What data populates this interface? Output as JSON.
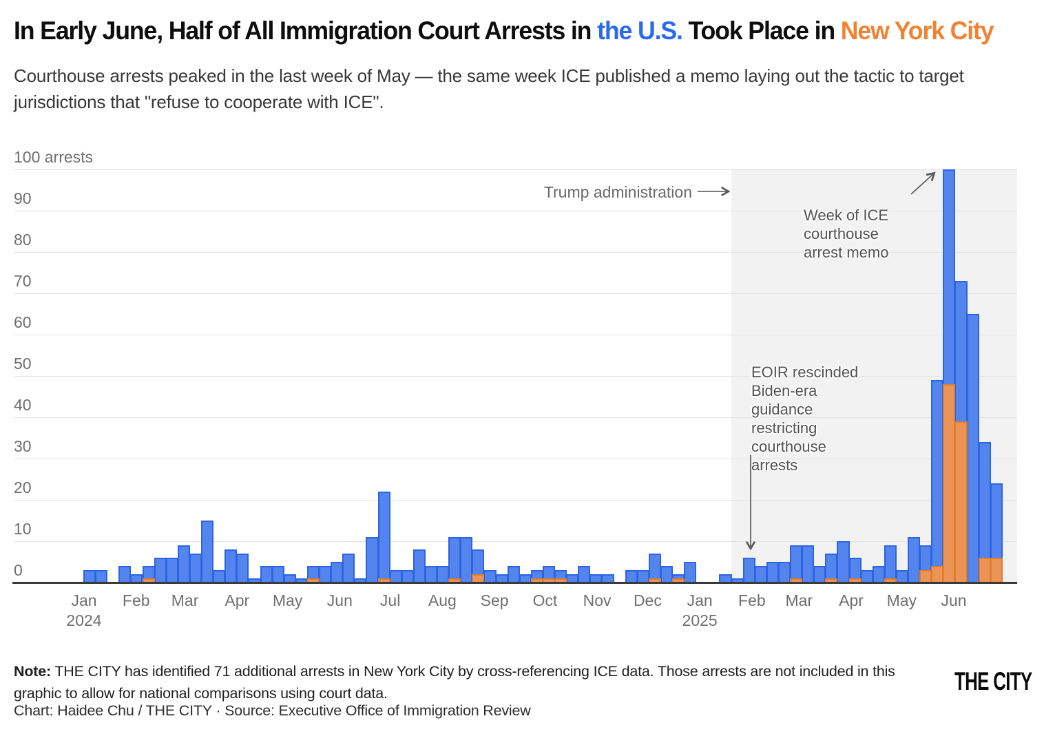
{
  "title": {
    "pre": "In Early June, Half of All Immigration Court Arrests in ",
    "us_highlight": "the U.S.",
    "mid": " Took Place in ",
    "nyc_highlight": "New York City"
  },
  "subtitle": "Courthouse arrests peaked in the last week of May — the same week ICE published a memo laying out the tactic to target jurisdictions that \"refuse to cooperate with ICE\".",
  "y_axis": {
    "top_label": "100 arrests",
    "ticks": [
      90,
      80,
      70,
      60,
      50,
      40,
      30,
      20,
      10,
      0
    ]
  },
  "x_axis": {
    "months": [
      {
        "label": "Jan",
        "year": "2024",
        "day_offset": 0
      },
      {
        "label": "Feb",
        "day_offset": 31
      },
      {
        "label": "Mar",
        "day_offset": 60
      },
      {
        "label": "Apr",
        "day_offset": 91
      },
      {
        "label": "May",
        "day_offset": 121
      },
      {
        "label": "Jun",
        "day_offset": 152
      },
      {
        "label": "Jul",
        "day_offset": 182
      },
      {
        "label": "Aug",
        "day_offset": 213
      },
      {
        "label": "Sep",
        "day_offset": 244
      },
      {
        "label": "Oct",
        "day_offset": 274
      },
      {
        "label": "Nov",
        "day_offset": 305
      },
      {
        "label": "Dec",
        "day_offset": 335
      },
      {
        "label": "Jan",
        "year": "2025",
        "day_offset": 366
      },
      {
        "label": "Feb",
        "day_offset": 397
      },
      {
        "label": "Mar",
        "day_offset": 425
      },
      {
        "label": "Apr",
        "day_offset": 456
      },
      {
        "label": "May",
        "day_offset": 486
      },
      {
        "label": "Jun",
        "day_offset": 517
      }
    ]
  },
  "annotations": {
    "trump": "Trump administration",
    "memo_lines": [
      "Week of ICE",
      "courthouse",
      "arrest memo"
    ],
    "eoir_lines": [
      "EOIR rescinded",
      "Biden-era",
      "guidance",
      "restricting",
      "courthouse",
      "arrests"
    ]
  },
  "footer": {
    "note_label": "Note:",
    "note_text": " THE CITY has identified 71 additional arrests in New York City by cross-referencing ICE data. Those arrests are not included in this graphic to allow for national comparisons using court data.",
    "credit": "Chart: Haidee Chu / THE CITY · Source: Executive Office of Immigration Review",
    "logo": "THE CITY"
  },
  "colors": {
    "us_fill": "#5484ed",
    "us_stroke": "#2d64e0",
    "nyc_fill": "#ec9455",
    "nyc_stroke": "#de7e30",
    "title_us": "#2b6af0",
    "title_nyc": "#ef8334",
    "shade": "#f2f2f2",
    "gridline": "#e2e2e2",
    "axis": "#3a3a3a"
  },
  "chart_data": {
    "type": "bar",
    "interval": "weekly",
    "x_start": "2024-01-01",
    "title": "Immigration court arrests per week",
    "ylabel": "arrests",
    "ylim": [
      0,
      100
    ],
    "grid": true,
    "shaded_region": {
      "label": "Trump administration",
      "start": "2025-01-20"
    },
    "event_markers": [
      {
        "label": "EOIR rescinded Biden-era guidance restricting courthouse arrests",
        "week": "2025-01-27"
      },
      {
        "label": "Week of ICE courthouse arrest memo",
        "week": "2025-05-26"
      }
    ],
    "series": [
      {
        "name": "U.S. total",
        "color": "#5484ed",
        "values": [
          3,
          3,
          0,
          4,
          2,
          4,
          6,
          6,
          9,
          7,
          15,
          3,
          8,
          7,
          1,
          4,
          4,
          2,
          1,
          4,
          4,
          5,
          7,
          1,
          11,
          22,
          3,
          3,
          8,
          4,
          4,
          11,
          11,
          8,
          3,
          2,
          4,
          2,
          3,
          4,
          3,
          2,
          4,
          2,
          2,
          0,
          3,
          3,
          7,
          4,
          2,
          5,
          0,
          0,
          2,
          1,
          6,
          4,
          5,
          5,
          9,
          9,
          4,
          7,
          10,
          6,
          3,
          4,
          9,
          3,
          11,
          9,
          49,
          100,
          73,
          65,
          34,
          24
        ]
      },
      {
        "name": "New York City",
        "color": "#ec9455",
        "values": [
          0,
          0,
          0,
          0,
          0,
          1,
          0,
          0,
          0,
          0,
          0,
          0,
          0,
          0,
          0,
          0,
          0,
          0,
          0,
          1,
          0,
          0,
          0,
          0,
          0,
          1,
          0,
          0,
          0,
          0,
          0,
          1,
          0,
          2,
          0,
          0,
          0,
          0,
          1,
          1,
          1,
          0,
          0,
          0,
          0,
          0,
          0,
          0,
          1,
          0,
          1,
          0,
          0,
          0,
          0,
          0,
          0,
          0,
          0,
          0,
          1,
          0,
          0,
          1,
          0,
          1,
          0,
          0,
          1,
          0,
          0,
          3,
          4,
          48,
          39,
          0,
          6,
          6
        ]
      }
    ]
  }
}
